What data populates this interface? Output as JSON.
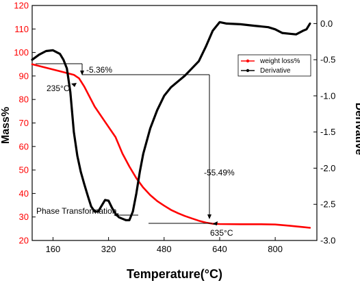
{
  "chart_data": {
    "type": "line",
    "xlabel": "Temperature(°C)",
    "ylabel_left": "Mass%",
    "ylabel_right": "Derivative",
    "xlim": [
      100,
      920
    ],
    "ylim_left": [
      20,
      120
    ],
    "ylim_right": [
      -3.0,
      0.25
    ],
    "xticks": [
      160,
      320,
      480,
      640,
      800
    ],
    "yticks_left": [
      20,
      30,
      40,
      50,
      60,
      70,
      80,
      90,
      100,
      110,
      120
    ],
    "yticks_right": [
      -3.0,
      -2.5,
      -2.0,
      -1.5,
      -1.0,
      -0.5,
      0.0
    ],
    "grid": false,
    "legend_position": "top-right",
    "colors": {
      "left_axis": "#ff0000",
      "right_axis": "#000000"
    },
    "series": [
      {
        "name": "weight loss%",
        "axis": "left",
        "color": "#ff0000",
        "x": [
          100,
          140,
          180,
          220,
          235,
          250,
          280,
          310,
          340,
          360,
          380,
          400,
          420,
          440,
          460,
          480,
          500,
          520,
          540,
          560,
          580,
          600,
          620,
          640,
          700,
          760,
          800,
          840,
          880,
          900
        ],
        "y": [
          95,
          93.5,
          92,
          90.5,
          89,
          85.5,
          77,
          70.5,
          64,
          57,
          51.5,
          46.5,
          42.5,
          39.3,
          36.8,
          34.8,
          33,
          31.6,
          30.4,
          29.4,
          28.4,
          27.6,
          27.1,
          27,
          26.9,
          26.9,
          26.8,
          26.3,
          25.7,
          25.4
        ]
      },
      {
        "name": "Derivative",
        "axis": "right",
        "color": "#000000",
        "x": [
          100,
          120,
          140,
          160,
          180,
          190,
          200,
          210,
          220,
          230,
          240,
          250,
          260,
          270,
          280,
          290,
          300,
          310,
          320,
          330,
          340,
          350,
          360,
          370,
          380,
          390,
          400,
          410,
          420,
          440,
          460,
          480,
          500,
          520,
          540,
          560,
          580,
          600,
          620,
          640,
          660,
          700,
          740,
          780,
          800,
          820,
          840,
          860,
          880,
          890,
          900
        ],
        "y": [
          -0.5,
          -0.43,
          -0.38,
          -0.37,
          -0.42,
          -0.5,
          -0.62,
          -0.95,
          -1.5,
          -1.83,
          -2.05,
          -2.22,
          -2.38,
          -2.53,
          -2.6,
          -2.6,
          -2.52,
          -2.44,
          -2.45,
          -2.55,
          -2.63,
          -2.68,
          -2.7,
          -2.72,
          -2.72,
          -2.6,
          -2.35,
          -2.05,
          -1.8,
          -1.45,
          -1.2,
          -1.0,
          -0.88,
          -0.8,
          -0.72,
          -0.62,
          -0.52,
          -0.32,
          -0.1,
          0.02,
          0.0,
          -0.01,
          -0.03,
          -0.05,
          -0.08,
          -0.13,
          -0.14,
          -0.15,
          -0.1,
          -0.08,
          0.0
        ]
      }
    ],
    "annotations": {
      "a1": "-5.36%",
      "a2": "235°C",
      "a3": "-55.49%",
      "a4": "Phase Transformation",
      "a5": "635°C"
    }
  }
}
